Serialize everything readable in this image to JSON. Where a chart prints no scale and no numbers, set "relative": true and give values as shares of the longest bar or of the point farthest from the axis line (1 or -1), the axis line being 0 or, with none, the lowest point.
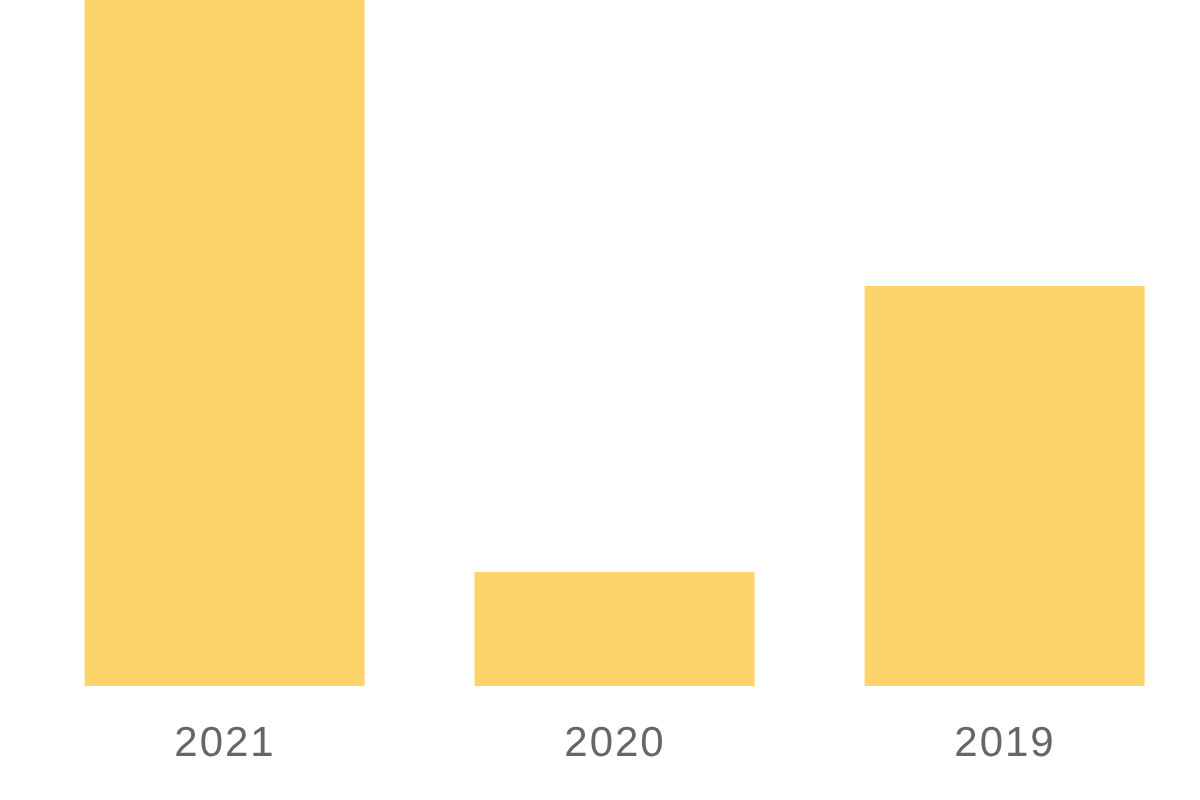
{
  "chart_data": {
    "type": "bar",
    "relative": true,
    "categories": [
      "2021",
      "2020",
      "2019"
    ],
    "values": [
      1,
      0.166,
      0.583
    ],
    "color": "#fdd46a"
  }
}
